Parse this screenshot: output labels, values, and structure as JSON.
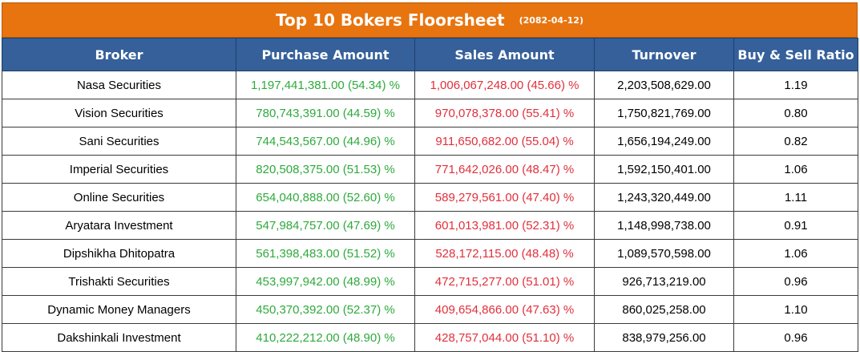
{
  "title": "Top 10 Bokers Floorsheet",
  "date": "(2082-04-12)",
  "colors": {
    "header_bg": "#35609a",
    "title_bg": "#e8740f",
    "purchase": "#2eaa3c",
    "sales": "#e0303c"
  },
  "columns": [
    "Broker",
    "Purchase Amount",
    "Sales Amount",
    "Turnover",
    "Buy & Sell Ratio"
  ],
  "rows": [
    {
      "broker": "Nasa Securities",
      "purchase": "1,197,441,381.00 (54.34) %",
      "sales": "1,006,067,248.00 (45.66) %",
      "turnover": "2,203,508,629.00",
      "ratio": "1.19"
    },
    {
      "broker": "Vision Securities",
      "purchase": "780,743,391.00 (44.59) %",
      "sales": "970,078,378.00 (55.41) %",
      "turnover": "1,750,821,769.00",
      "ratio": "0.80"
    },
    {
      "broker": "Sani Securities",
      "purchase": "744,543,567.00 (44.96) %",
      "sales": "911,650,682.00 (55.04) %",
      "turnover": "1,656,194,249.00",
      "ratio": "0.82"
    },
    {
      "broker": "Imperial Securities",
      "purchase": "820,508,375.00 (51.53) %",
      "sales": "771,642,026.00 (48.47) %",
      "turnover": "1,592,150,401.00",
      "ratio": "1.06"
    },
    {
      "broker": "Online Securities",
      "purchase": "654,040,888.00 (52.60) %",
      "sales": "589,279,561.00 (47.40) %",
      "turnover": "1,243,320,449.00",
      "ratio": "1.11"
    },
    {
      "broker": "Aryatara Investment",
      "purchase": "547,984,757.00 (47.69) %",
      "sales": "601,013,981.00 (52.31) %",
      "turnover": "1,148,998,738.00",
      "ratio": "0.91"
    },
    {
      "broker": "Dipshikha Dhitopatra",
      "purchase": "561,398,483.00 (51.52) %",
      "sales": "528,172,115.00 (48.48) %",
      "turnover": "1,089,570,598.00",
      "ratio": "1.06"
    },
    {
      "broker": "Trishakti Securities",
      "purchase": "453,997,942.00 (48.99) %",
      "sales": "472,715,277.00 (51.01) %",
      "turnover": "926,713,219.00",
      "ratio": "0.96"
    },
    {
      "broker": "Dynamic Money Managers",
      "purchase": "450,370,392.00 (52.37) %",
      "sales": "409,654,866.00 (47.63) %",
      "turnover": "860,025,258.00",
      "ratio": "1.10"
    },
    {
      "broker": "Dakshinkali Investment",
      "purchase": "410,222,212.00 (48.90) %",
      "sales": "428,757,044.00 (51.10) %",
      "turnover": "838,979,256.00",
      "ratio": "0.96"
    }
  ]
}
